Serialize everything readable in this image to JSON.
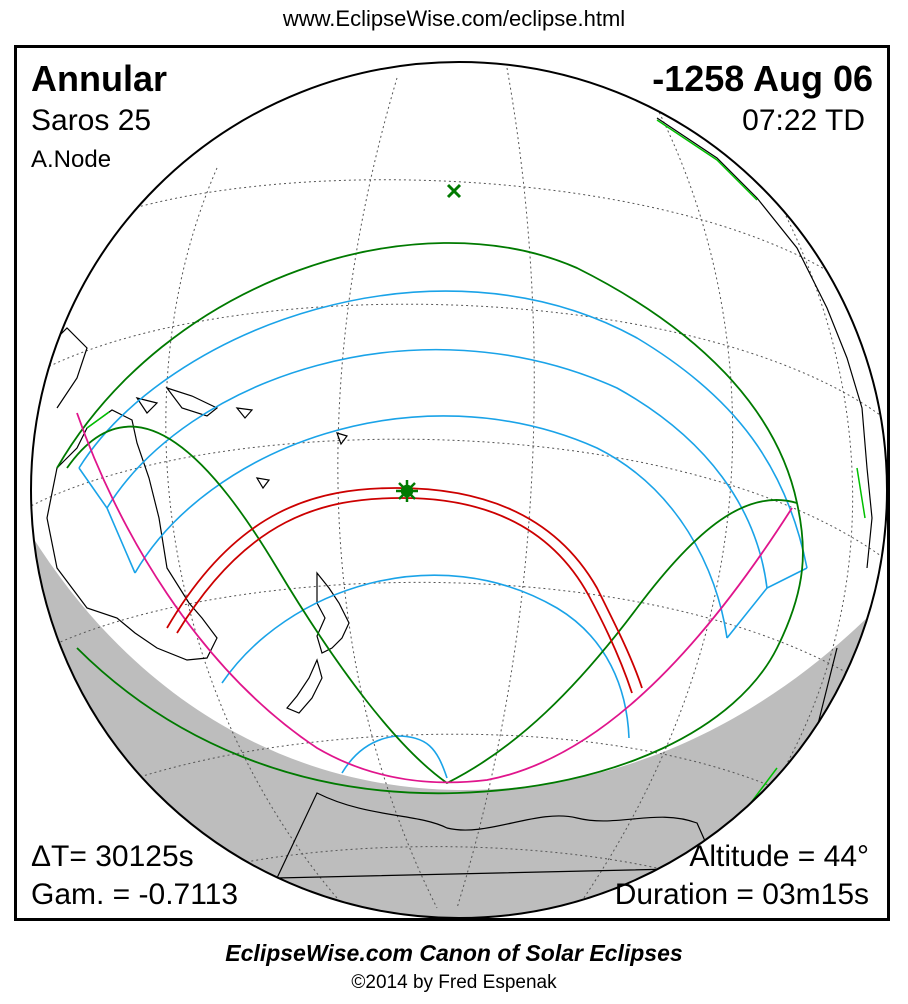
{
  "header": {
    "url": "www.EclipseWise.com/eclipse.html"
  },
  "eclipse": {
    "type": "Annular",
    "date": "-1258 Aug 06",
    "saros": "Saros  25",
    "time": "07:22 TD",
    "node": "A.Node",
    "delta_t": "ΔT=  30125s",
    "gamma": "Gam. = -0.7113",
    "altitude": "Altitude = 44°",
    "duration": "Duration = 03m15s"
  },
  "footer": {
    "title": "EclipseWise.com Canon of Solar Eclipses",
    "copyright": "©2014 by Fred Espenak"
  },
  "colors": {
    "penumbral_limits": "#007a00",
    "magnitude_lines": "#1aa3e8",
    "central_path": "#cc0000",
    "rise_set": "#e0158c",
    "night_shade": "#bdbdbd",
    "greatest_eclipse": "#007a00"
  }
}
